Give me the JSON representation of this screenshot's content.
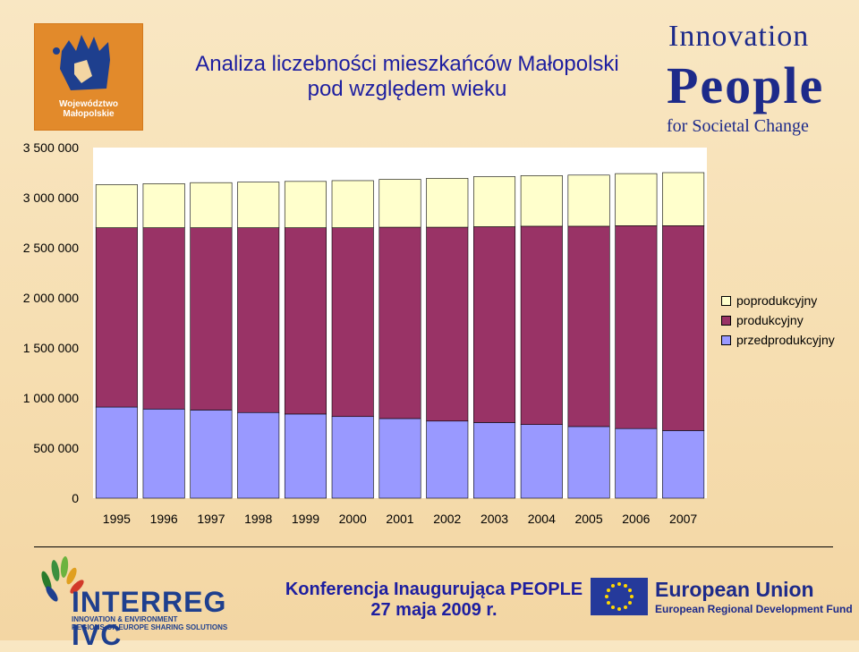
{
  "logo_left": {
    "text": "Województwo Małopolskie",
    "line1": "Województwo",
    "line2": "Małopolskie"
  },
  "title": {
    "line1": "Analiza liczebności mieszkańców Małopolski",
    "line2": "pod względem wieku"
  },
  "logo_right": {
    "line1": "Innovation",
    "line2": "People",
    "line3": "for Societal Change"
  },
  "chart_data": {
    "type": "bar",
    "stacked": true,
    "categories": [
      "1995",
      "1996",
      "1997",
      "1998",
      "1999",
      "2000",
      "2001",
      "2002",
      "2003",
      "2004",
      "2005",
      "2006",
      "2007"
    ],
    "series": [
      {
        "name": "przedprodukcyjny",
        "color": "#9999ff",
        "values": [
          910000,
          890000,
          880000,
          855000,
          840000,
          815000,
          795000,
          770000,
          755000,
          735000,
          715000,
          695000,
          675000
        ]
      },
      {
        "name": "produkcyjny",
        "color": "#993366",
        "values": [
          1790000,
          1810000,
          1820000,
          1845000,
          1860000,
          1885000,
          1910000,
          1935000,
          1955000,
          1980000,
          2000000,
          2025000,
          2045000
        ]
      },
      {
        "name": "poprodukcyjny",
        "color": "#ffffcc",
        "values": [
          430000,
          440000,
          450000,
          455000,
          462000,
          470000,
          478000,
          488000,
          500000,
          505000,
          510000,
          520000,
          530000
        ]
      }
    ],
    "ylim": [
      0,
      3500000
    ],
    "yticks": [
      0,
      500000,
      1000000,
      1500000,
      2000000,
      2500000,
      3000000,
      3500000
    ],
    "ytick_labels": [
      "0",
      "500 000",
      "1 000 000",
      "1 500 000",
      "2 000 000",
      "2 500 000",
      "3 000 000",
      "3 500 000"
    ],
    "legend_order": [
      "poprodukcyjny",
      "produkcyjny",
      "przedprodukcyjny"
    ],
    "legend_position": "right",
    "plot_background": "#ffffff",
    "grid": false
  },
  "footer": {
    "interreg": {
      "name": "INTERREG IVC",
      "sub1": "INNOVATION & ENVIRONMENT",
      "sub2": "REGIONS OF EUROPE SHARING SOLUTIONS"
    },
    "conference": {
      "line1": "Konferencja Inaugurująca PEOPLE",
      "line2": "27 maja 2009 r."
    },
    "eu": {
      "name": "European Union",
      "fund": "European Regional Development Fund"
    }
  }
}
